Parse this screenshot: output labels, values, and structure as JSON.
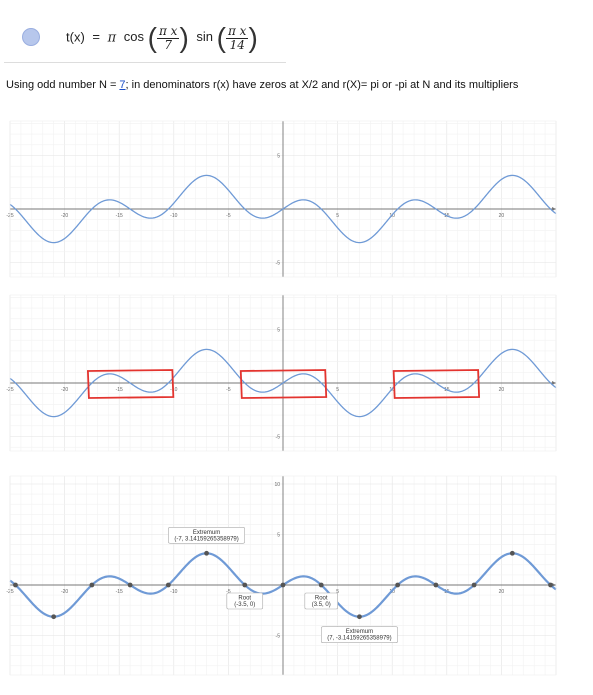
{
  "formula": {
    "lhs": "t(x)",
    "eq": "=",
    "pi": "π",
    "cos": "cos",
    "sin": "sin",
    "cos_num": "π x",
    "cos_den": "7",
    "sin_num": "π x",
    "sin_den": "14",
    "swatch_color": "#b7c7ec"
  },
  "description": {
    "before": "Using odd number N = ",
    "n_value": "7",
    "after": "; in denominators r(x) have zeros at X/2 and r(X)= pi or -pi at N and its multipliers"
  },
  "chart_data": [
    {
      "type": "line",
      "function": "pi*cos(pi*x/7)*sin(pi*x/14)",
      "xlim": [
        -25,
        25
      ],
      "ylim": [
        -7,
        10
      ],
      "x_ticks": [
        "-25",
        "-20",
        "-15",
        "-10",
        "-5",
        "0",
        "5",
        "10",
        "15",
        "20"
      ],
      "y_ticks": [
        "10",
        "5",
        "-5"
      ],
      "series_color": "#6f9ad6",
      "grid": true
    },
    {
      "type": "line",
      "function": "pi*cos(pi*x/7)*sin(pi*x/14)",
      "xlim": [
        -25,
        25
      ],
      "ylim": [
        -7,
        10
      ],
      "x_ticks": [
        "-25",
        "-20",
        "-15",
        "-10",
        "-5",
        "0",
        "5",
        "10",
        "15",
        "20"
      ],
      "y_ticks": [
        "10",
        "5",
        "-5"
      ],
      "series_color": "#6f9ad6",
      "grid": true,
      "highlight_color": "#e3342f",
      "highlight_ranges_x": [
        [
          -17.5,
          -10.5
        ],
        [
          -3.5,
          3.5
        ],
        [
          10.5,
          17.5
        ]
      ]
    },
    {
      "type": "line",
      "function": "pi*cos(pi*x/7)*sin(pi*x/14)",
      "xlim": [
        -25,
        25
      ],
      "ylim": [
        -7,
        10
      ],
      "x_ticks": [
        "-25",
        "-20",
        "-15",
        "-10",
        "-5",
        "0",
        "5",
        "10",
        "15",
        "20"
      ],
      "y_ticks": [
        "10",
        "5",
        "-5"
      ],
      "series_color": "#6f9ad6",
      "point_color": "#555555",
      "grid": true,
      "points_x": [
        -28,
        -24.5,
        -21,
        -17.5,
        -14,
        -10.5,
        -7,
        -3.5,
        0,
        3.5,
        7,
        10.5,
        14,
        17.5,
        21,
        24.5
      ],
      "annotations": [
        {
          "title": "Extremum",
          "value": "(-7, 3.14159265358979)",
          "x": -7,
          "y": 3.1416
        },
        {
          "title": "Root",
          "value": "(-3.5, 0)",
          "x": -3.5,
          "y": 0
        },
        {
          "title": "Root",
          "value": "(3.5, 0)",
          "x": 3.5,
          "y": 0
        },
        {
          "title": "Extremum",
          "value": "(7, -3.14159265358979)",
          "x": 7,
          "y": -3.1416
        }
      ]
    }
  ]
}
